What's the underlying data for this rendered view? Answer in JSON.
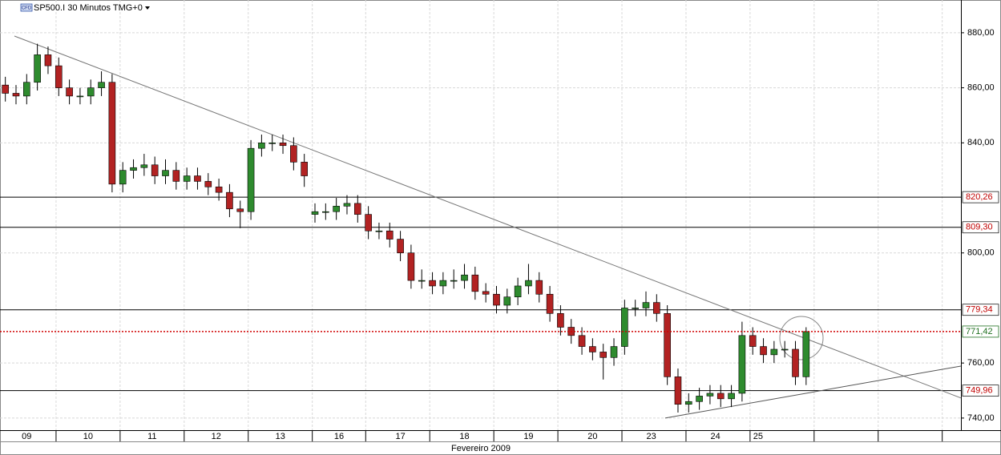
{
  "chart_data": {
    "type": "candlestick",
    "title": "SP500.I 30 Minutos TMG+0",
    "icon_label": "CFD",
    "x_label": "Fevereiro 2009",
    "x": [
      0,
      1,
      2,
      3,
      4,
      5,
      6,
      7,
      8,
      9,
      10,
      11,
      12,
      13,
      14,
      15,
      16,
      17,
      18,
      19,
      20,
      21,
      22,
      23,
      24,
      25,
      26,
      27,
      28,
      29,
      30,
      31,
      32,
      33,
      34,
      35,
      36,
      37,
      38,
      39,
      40,
      41,
      42,
      43,
      44,
      45,
      46,
      47,
      48,
      49,
      50,
      51,
      52,
      53,
      54,
      55,
      56,
      57,
      58,
      59,
      60,
      61,
      62,
      63,
      64,
      65,
      66,
      67,
      68,
      69,
      70,
      71,
      72,
      73,
      74,
      75
    ],
    "open": [
      861,
      858,
      857,
      862,
      872,
      868,
      860,
      857,
      857,
      860,
      862,
      825,
      830,
      831,
      832,
      828,
      830,
      826,
      828,
      826,
      824,
      822,
      816,
      815,
      838,
      840,
      840,
      839,
      833,
      814,
      815,
      815,
      817,
      818,
      814,
      808,
      808,
      805,
      800,
      790,
      790,
      788,
      790,
      790,
      792,
      786,
      785,
      781,
      784,
      788,
      790,
      785,
      778,
      773,
      770,
      766,
      764,
      762,
      766,
      780,
      780,
      782,
      778,
      755,
      745,
      746,
      748,
      749,
      747,
      749,
      770,
      766,
      763,
      765,
      765,
      755
    ],
    "high": [
      864,
      861,
      865,
      876,
      875,
      871,
      863,
      860,
      863,
      866,
      865,
      833,
      834,
      836,
      835,
      834,
      833,
      831,
      831,
      829,
      827,
      825,
      819,
      841,
      843,
      843,
      843,
      842,
      836,
      818,
      818,
      820,
      821,
      821,
      817,
      811,
      811,
      808,
      803,
      794,
      793,
      793,
      794,
      796,
      795,
      789,
      788,
      787,
      791,
      796,
      793,
      788,
      781,
      776,
      773,
      769,
      767,
      769,
      783,
      783,
      786,
      785,
      781,
      758,
      749,
      751,
      752,
      752,
      752,
      775,
      773,
      769,
      768,
      768,
      768,
      773
    ],
    "low": [
      855,
      854,
      854,
      859,
      865,
      857,
      854,
      854,
      854,
      857,
      822,
      822,
      827,
      828,
      825,
      825,
      823,
      823,
      823,
      821,
      819,
      813,
      809,
      812,
      835,
      837,
      836,
      830,
      824,
      811,
      812,
      812,
      814,
      811,
      805,
      805,
      802,
      797,
      787,
      787,
      785,
      785,
      787,
      787,
      783,
      782,
      778,
      778,
      781,
      785,
      782,
      775,
      770,
      767,
      763,
      761,
      754,
      759,
      763,
      777,
      777,
      775,
      752,
      742,
      742,
      743,
      745,
      744,
      744,
      746,
      763,
      760,
      760,
      762,
      752,
      752
    ],
    "close": [
      858,
      857,
      862,
      872,
      868,
      860,
      857,
      857,
      860,
      862,
      825,
      830,
      831,
      832,
      828,
      830,
      826,
      828,
      826,
      824,
      822,
      816,
      815,
      838,
      840,
      840,
      839,
      833,
      828,
      815,
      815,
      817,
      818,
      814,
      808,
      808,
      805,
      800,
      790,
      790,
      788,
      790,
      790,
      792,
      786,
      785,
      781,
      784,
      788,
      790,
      785,
      778,
      773,
      770,
      766,
      764,
      762,
      766,
      780,
      780,
      782,
      778,
      755,
      745,
      746,
      748,
      749,
      747,
      749,
      770,
      766,
      763,
      765,
      765,
      755,
      771.42
    ],
    "up_color": "#2e8b2e",
    "down_color": "#b22222",
    "xlim": [
      -0.5,
      89.5
    ],
    "ylim": [
      735.6,
      891.9
    ],
    "yticks": [
      {
        "value": 740,
        "label": "740,00"
      },
      {
        "value": 760,
        "label": "760,00"
      },
      {
        "value": 800,
        "label": "800,00"
      },
      {
        "value": 840,
        "label": "840,00"
      },
      {
        "value": 860,
        "label": "860,00"
      },
      {
        "value": 880,
        "label": "880,00"
      }
    ],
    "xticks": [
      {
        "value": 2,
        "label": "09"
      },
      {
        "value": 7.75,
        "label": "10"
      },
      {
        "value": 13.75,
        "label": "11"
      },
      {
        "value": 19.75,
        "label": "12"
      },
      {
        "value": 25.75,
        "label": "13"
      },
      {
        "value": 31.25,
        "label": "16"
      },
      {
        "value": 37,
        "label": "17"
      },
      {
        "value": 43,
        "label": "18"
      },
      {
        "value": 49,
        "label": "19"
      },
      {
        "value": 55,
        "label": "20"
      },
      {
        "value": 60.5,
        "label": "23"
      },
      {
        "value": 66.5,
        "label": "24"
      },
      {
        "value": 70.5,
        "label": "25"
      }
    ],
    "xgrid": [
      4.75,
      10.75,
      16.75,
      22.75,
      28.75,
      33.75,
      39.75,
      45.75,
      51.75,
      57.75,
      63.75,
      69.75,
      75.75,
      81.75,
      87.75
    ],
    "grid": true,
    "levels": {
      "values": [
        820.26,
        809.3,
        779.34,
        749.96
      ],
      "value_labels": [
        "820,26",
        "809,30",
        "779,34",
        "749,96"
      ],
      "color": "#000000",
      "label_color": "#c00000"
    },
    "last_price": {
      "value": 771.42,
      "label": "771,42",
      "color": "#d00000",
      "label_color": "#207020"
    },
    "trendlines": [
      {
        "x": [
          0.85,
          89.5
        ],
        "values": [
          878.8,
          747.3
        ],
        "color": "#777777"
      },
      {
        "x": [
          61.8,
          89.5
        ],
        "values": [
          740,
          758.9
        ],
        "color": "#555555"
      }
    ]
  }
}
